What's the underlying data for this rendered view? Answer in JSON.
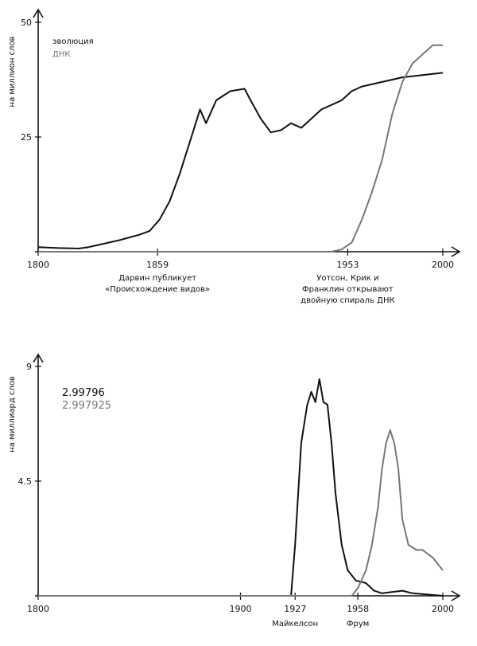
{
  "chart_data": [
    {
      "type": "line",
      "ylabel": "на миллион слов",
      "xlim": [
        1800,
        2000
      ],
      "ylim": [
        0,
        50
      ],
      "x_ticks": [
        1800,
        1859,
        1953,
        2000
      ],
      "y_ticks": [
        25,
        50
      ],
      "grid": false,
      "legend_position": "top-left",
      "series": [
        {
          "name": "эволюция",
          "color": "#111111",
          "points": [
            [
              1800,
              1
            ],
            [
              1810,
              0.8
            ],
            [
              1820,
              0.7
            ],
            [
              1825,
              1
            ],
            [
              1830,
              1.5
            ],
            [
              1840,
              2.5
            ],
            [
              1850,
              3.7
            ],
            [
              1855,
              4.5
            ],
            [
              1860,
              7
            ],
            [
              1865,
              11
            ],
            [
              1870,
              17
            ],
            [
              1875,
              24
            ],
            [
              1880,
              31
            ],
            [
              1883,
              28
            ],
            [
              1888,
              33
            ],
            [
              1895,
              35
            ],
            [
              1902,
              35.5
            ],
            [
              1905,
              33
            ],
            [
              1910,
              29
            ],
            [
              1915,
              26
            ],
            [
              1920,
              26.5
            ],
            [
              1925,
              28
            ],
            [
              1930,
              27
            ],
            [
              1935,
              29
            ],
            [
              1940,
              31
            ],
            [
              1950,
              33
            ],
            [
              1955,
              35
            ],
            [
              1960,
              36
            ],
            [
              1970,
              37
            ],
            [
              1980,
              38
            ],
            [
              1990,
              38.5
            ],
            [
              2000,
              39
            ]
          ]
        },
        {
          "name": "ДНК",
          "color": "#777777",
          "points": [
            [
              1800,
              0
            ],
            [
              1945,
              0
            ],
            [
              1950,
              0.5
            ],
            [
              1955,
              2
            ],
            [
              1960,
              7
            ],
            [
              1965,
              13
            ],
            [
              1970,
              20
            ],
            [
              1975,
              30
            ],
            [
              1980,
              37
            ],
            [
              1985,
              41
            ],
            [
              1990,
              43
            ],
            [
              1995,
              45
            ],
            [
              2000,
              45
            ]
          ]
        }
      ],
      "annotations": [
        {
          "x": 1859,
          "lines": [
            "Дарвин публикует",
            "«Происхождение видов»"
          ]
        },
        {
          "x": 1953,
          "lines": [
            "Уотсон, Крик и",
            "Франклин открывают",
            "двойную спираль ДНК"
          ]
        }
      ]
    },
    {
      "type": "line",
      "ylabel": "на миллиард слов",
      "xlim": [
        1800,
        2000
      ],
      "ylim": [
        0,
        9
      ],
      "x_ticks": [
        1800,
        1900,
        1927,
        1958,
        2000
      ],
      "y_ticks": [
        4.5,
        9
      ],
      "grid": false,
      "legend_position": "top-left",
      "series": [
        {
          "name": "2.99796",
          "color": "#111111",
          "points": [
            [
              1800,
              0
            ],
            [
              1925,
              0
            ],
            [
              1927,
              2
            ],
            [
              1930,
              6
            ],
            [
              1933,
              7.5
            ],
            [
              1935,
              8
            ],
            [
              1937,
              7.6
            ],
            [
              1939,
              8.5
            ],
            [
              1941,
              7.6
            ],
            [
              1943,
              7.5
            ],
            [
              1945,
              6
            ],
            [
              1947,
              4
            ],
            [
              1950,
              2
            ],
            [
              1953,
              1
            ],
            [
              1957,
              0.6
            ],
            [
              1962,
              0.5
            ],
            [
              1966,
              0.2
            ],
            [
              1970,
              0.1
            ],
            [
              1980,
              0.2
            ],
            [
              1985,
              0.1
            ],
            [
              2000,
              0
            ]
          ]
        },
        {
          "name": "2.997925",
          "color": "#777777",
          "points": [
            [
              1800,
              0
            ],
            [
              1955,
              0
            ],
            [
              1958,
              0.3
            ],
            [
              1962,
              1
            ],
            [
              1965,
              2
            ],
            [
              1968,
              3.5
            ],
            [
              1970,
              5
            ],
            [
              1972,
              6
            ],
            [
              1974,
              6.5
            ],
            [
              1976,
              6
            ],
            [
              1978,
              5
            ],
            [
              1980,
              3
            ],
            [
              1983,
              2
            ],
            [
              1987,
              1.8
            ],
            [
              1990,
              1.8
            ],
            [
              1995,
              1.5
            ],
            [
              2000,
              1
            ]
          ]
        }
      ],
      "annotations": [
        {
          "x": 1927,
          "lines": [
            "Майкелсон"
          ]
        },
        {
          "x": 1958,
          "lines": [
            "Фрум"
          ]
        }
      ]
    }
  ]
}
